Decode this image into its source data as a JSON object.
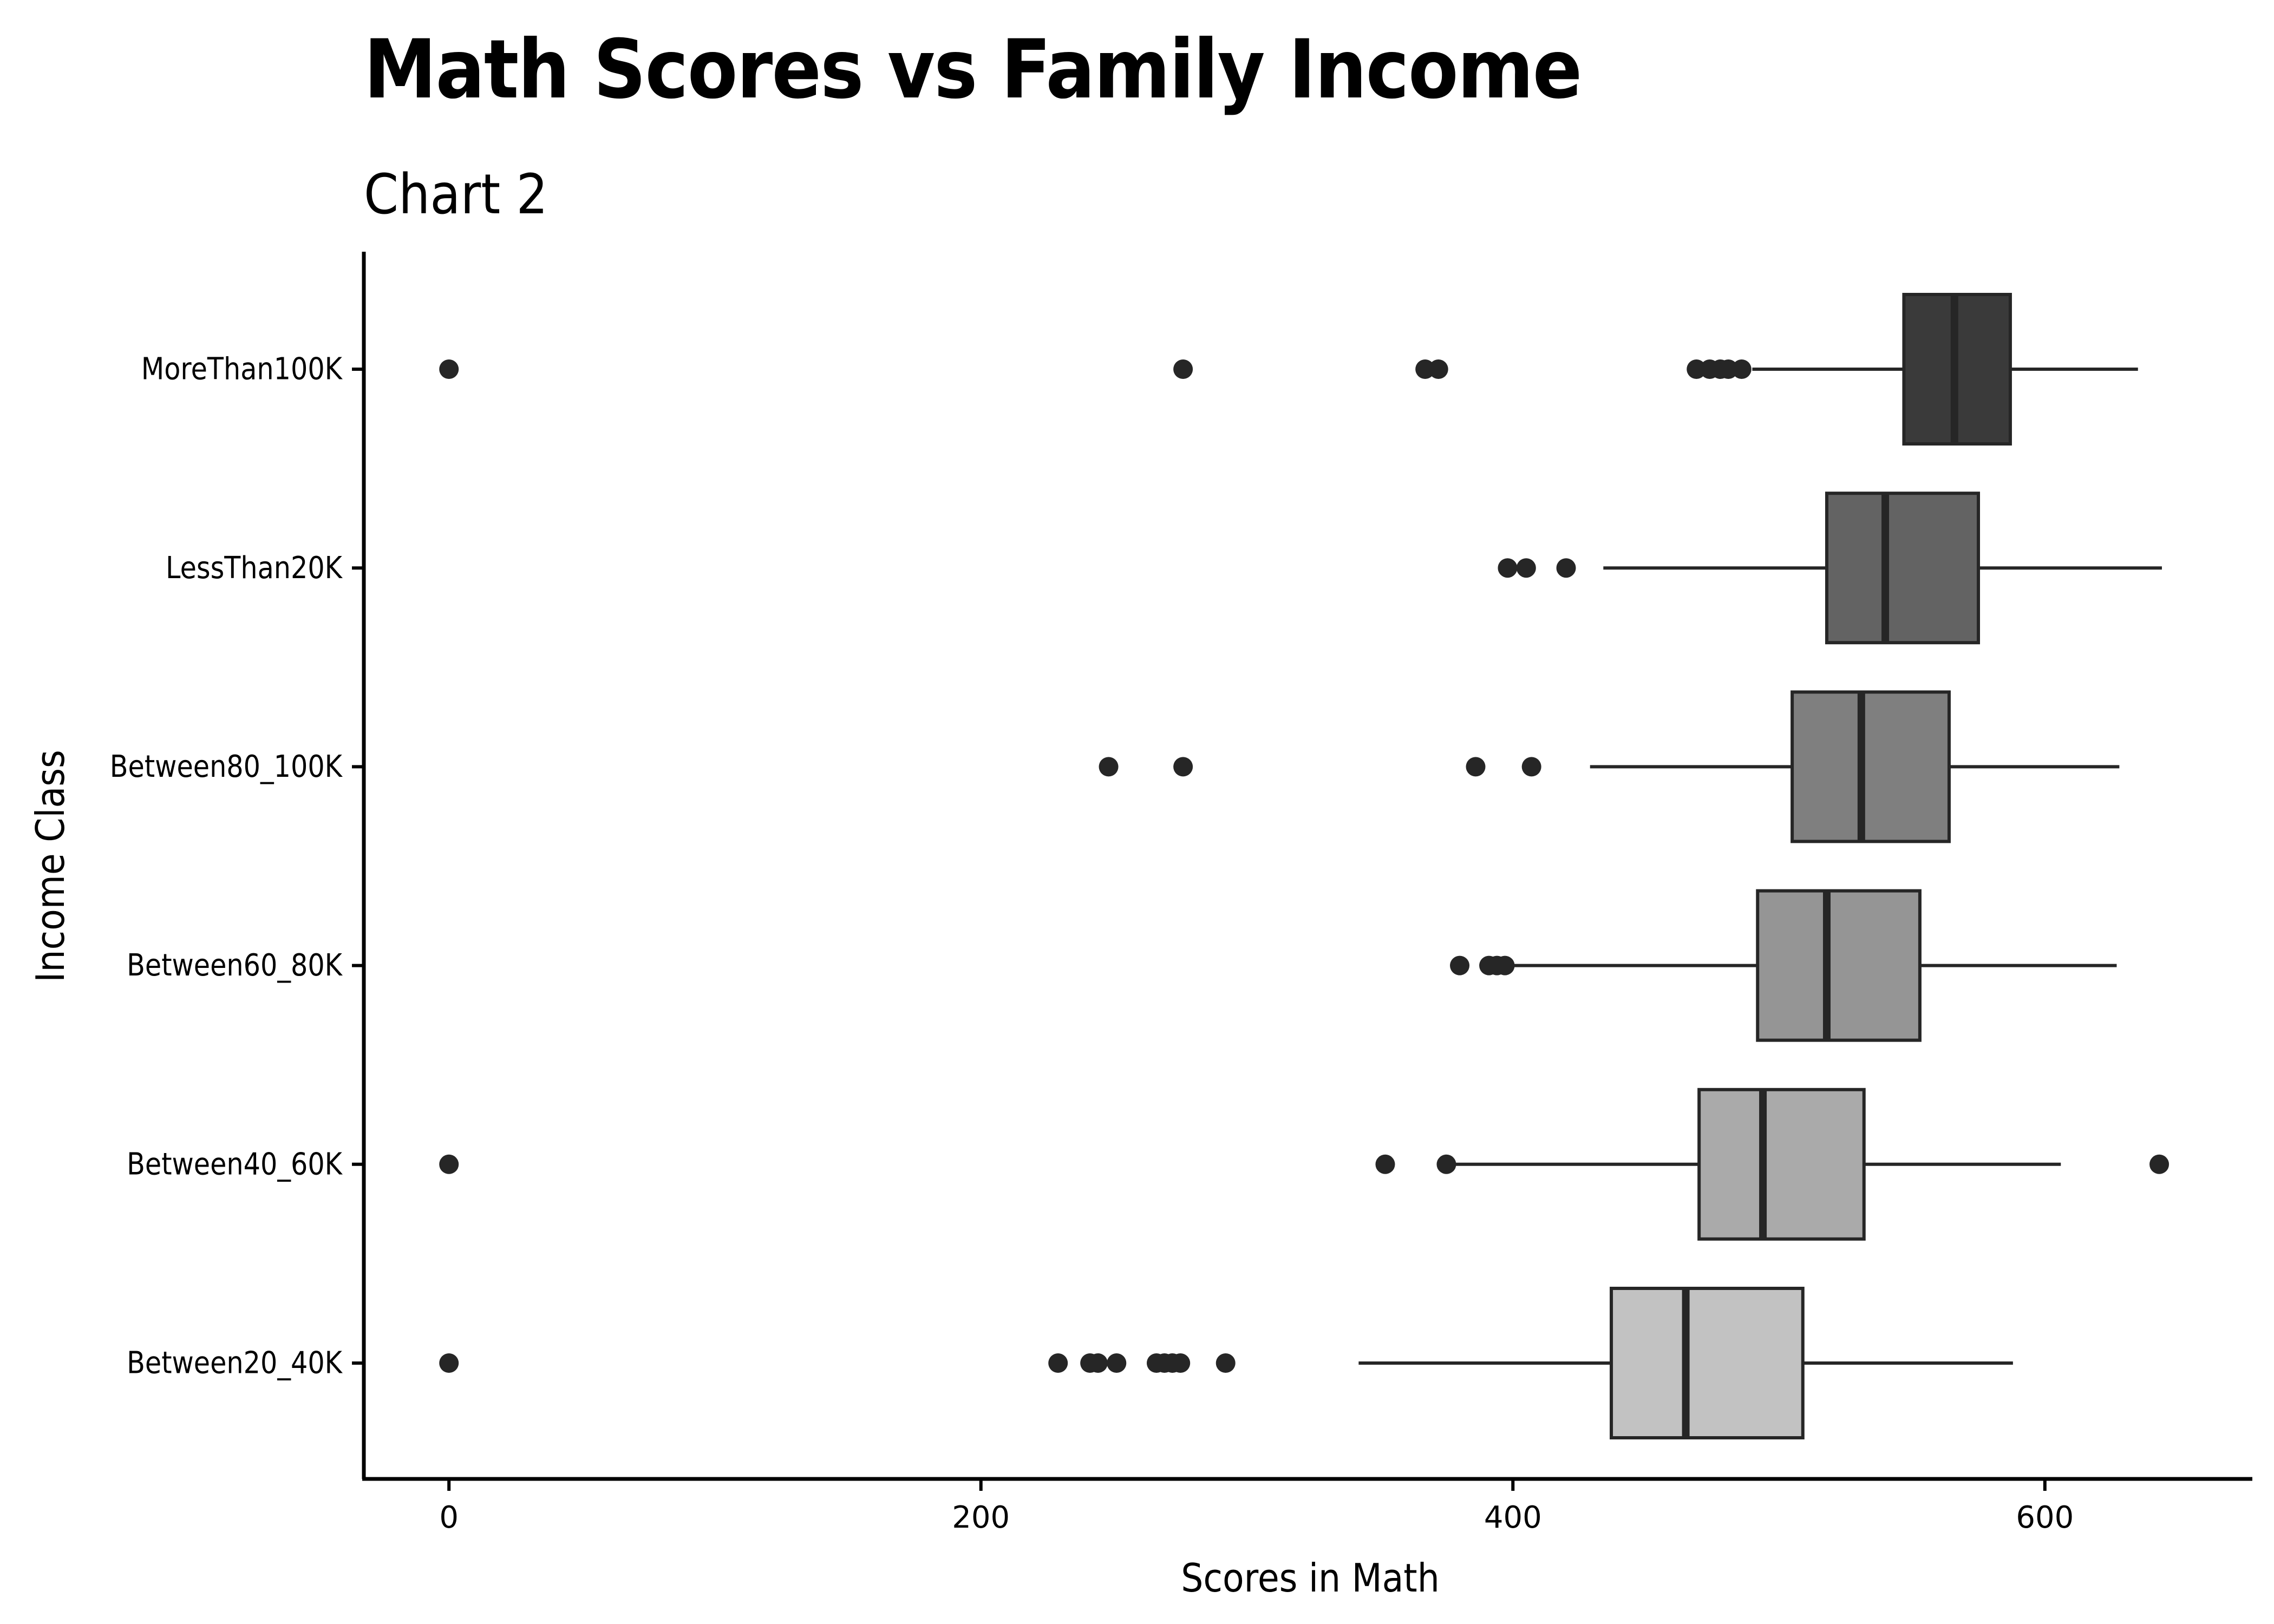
{
  "chart_data": {
    "type": "boxplot",
    "orientation": "horizontal",
    "title": "Math Scores vs Family Income",
    "subtitle": "Chart 2",
    "xlabel": "Scores in Math",
    "ylabel": "Income Class",
    "xlim": [
      -32,
      678
    ],
    "x_ticks": [
      0,
      200,
      400,
      600
    ],
    "x_tick_labels": [
      "0",
      "200",
      "400",
      "600"
    ],
    "grid": false,
    "legend": "none",
    "categories": [
      "MoreThan100K",
      "LessThan20K",
      "Between80_100K",
      "Between60_80K",
      "Between40_60K",
      "Between20_40K"
    ],
    "boxes": [
      {
        "category": "MoreThan100K",
        "whisker_low": 490,
        "q1": 547,
        "median": 566,
        "q3": 587,
        "whisker_high": 635,
        "outliers": [
          0,
          276,
          367,
          372,
          469,
          474,
          478,
          481,
          486
        ],
        "fill": "#3a3a3a"
      },
      {
        "category": "LessThan20K",
        "whisker_low": 434,
        "q1": 518,
        "median": 540,
        "q3": 575,
        "whisker_high": 644,
        "outliers": [
          398,
          405,
          420
        ],
        "fill": "#636363"
      },
      {
        "category": "Between80_100K",
        "whisker_low": 429,
        "q1": 505,
        "median": 531,
        "q3": 564,
        "whisker_high": 628,
        "outliers": [
          248,
          276,
          386,
          407
        ],
        "fill": "#7f7f7f"
      },
      {
        "category": "Between60_80K",
        "whisker_low": 400,
        "q1": 492,
        "median": 518,
        "q3": 553,
        "whisker_high": 627,
        "outliers": [
          380,
          391,
          394,
          397
        ],
        "fill": "#959595"
      },
      {
        "category": "Between40_60K",
        "whisker_low": 376,
        "q1": 470,
        "median": 494,
        "q3": 532,
        "whisker_high": 606,
        "outliers": [
          0,
          352,
          375,
          643
        ],
        "fill": "#aaaaaa"
      },
      {
        "category": "Between20_40K",
        "whisker_low": 342,
        "q1": 437,
        "median": 465,
        "q3": 509,
        "whisker_high": 588,
        "outliers": [
          0,
          229,
          241,
          244,
          251,
          266,
          269,
          272,
          275,
          292
        ],
        "fill": "#c2c2c2"
      }
    ]
  },
  "colors": {
    "axis": "#000000",
    "stroke": "#262626",
    "point": "#262626",
    "background": "#ffffff"
  }
}
